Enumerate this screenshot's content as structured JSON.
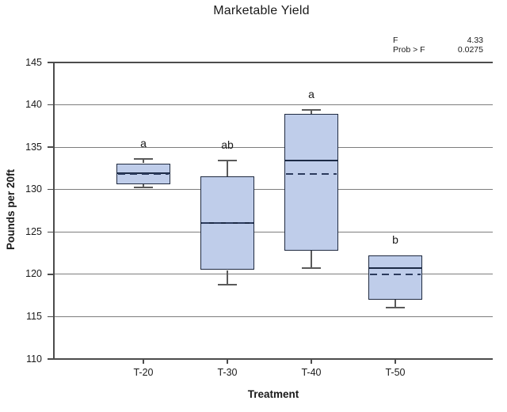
{
  "chart_data": {
    "type": "box",
    "title": "Marketable Yield",
    "xlabel": "Treatment",
    "ylabel": "Pounds per 20ft",
    "ylim": [
      110,
      145
    ],
    "yticks": [
      110,
      115,
      120,
      125,
      130,
      135,
      140,
      145
    ],
    "grid": "horizontal",
    "legend": "none",
    "categories": [
      "T-20",
      "T-30",
      "T-40",
      "T-50"
    ],
    "stats": [
      {
        "label": "F",
        "value": "4.33"
      },
      {
        "label": "Prob > F",
        "value": "0.0275"
      }
    ],
    "boxes": [
      {
        "category": "T-20",
        "letter": "a",
        "whisker_low": 130.3,
        "q1": 130.6,
        "median": 131.9,
        "mean": 131.8,
        "q3": 133.1,
        "whisker_high": 133.6
      },
      {
        "category": "T-30",
        "letter": "ab",
        "whisker_low": 118.8,
        "q1": 120.5,
        "median": 126.1,
        "mean": 126.1,
        "q3": 131.6,
        "whisker_high": 133.4
      },
      {
        "category": "T-40",
        "letter": "a",
        "whisker_low": 120.7,
        "q1": 122.8,
        "median": 133.4,
        "mean": 131.8,
        "q3": 138.9,
        "whisker_high": 139.4
      },
      {
        "category": "T-50",
        "letter": "b",
        "whisker_low": 116.1,
        "q1": 117.0,
        "median": 120.7,
        "mean": 120.0,
        "q3": 122.2,
        "whisker_high": 122.2
      }
    ],
    "colors": {
      "box_fill": "#bfcdea",
      "box_border": "#1f2a40",
      "median": "#1c2a45",
      "mean_dash": "#2b3a5c",
      "whisker": "#5a5a5a",
      "gridline": "#7d7d7d",
      "axis": "#4c4c4c",
      "text": "#1a1a1a"
    }
  }
}
